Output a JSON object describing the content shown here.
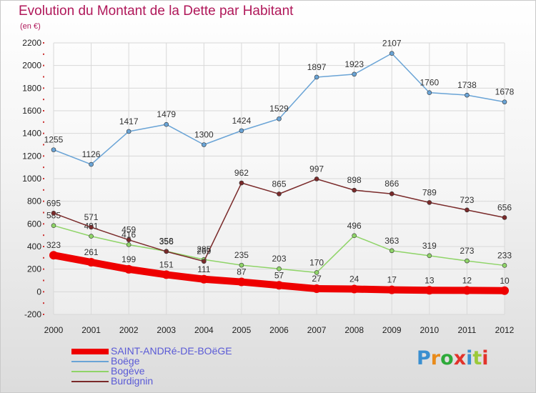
{
  "title": "Evolution du Montant de la Dette par Habitant",
  "subtitle": "(en €)",
  "logo": {
    "text": "Proxiti",
    "colors": [
      "#3a8fd0",
      "#e98b1b",
      "#2eaa3a",
      "#e2332b",
      "#3a8fd0",
      "#9bc93a",
      "#e2332b"
    ]
  },
  "chart_data": {
    "type": "line",
    "title": "Evolution du Montant de la Dette par Habitant",
    "subtitle": "(en €)",
    "categories": [
      "2000",
      "2001",
      "2002",
      "2003",
      "2004",
      "2005",
      "2006",
      "2007",
      "2008",
      "2009",
      "2010",
      "2011",
      "2012"
    ],
    "ylim": [
      -200,
      2200
    ],
    "yticks": [
      -200,
      0,
      200,
      400,
      600,
      800,
      1000,
      1200,
      1400,
      1600,
      1800,
      2000,
      2200
    ],
    "grid": true,
    "legend_position": "bottom-left",
    "series": [
      {
        "name": "SAINT-ANDRé-DE-BOëGE",
        "color": "#ee0000",
        "thick": true,
        "values": [
          323,
          261,
          199,
          151,
          111,
          87,
          57,
          27,
          24,
          17,
          13,
          12,
          10
        ]
      },
      {
        "name": "Boëge",
        "color": "#6aa4d6",
        "thick": false,
        "values": [
          1255,
          1126,
          1417,
          1479,
          1300,
          1424,
          1529,
          1897,
          1923,
          2107,
          1760,
          1738,
          1678
        ]
      },
      {
        "name": "Bogève",
        "color": "#8fd468",
        "thick": false,
        "values": [
          585,
          491,
          416,
          358,
          285,
          235,
          203,
          170,
          496,
          363,
          319,
          273,
          233
        ]
      },
      {
        "name": "Burdignin",
        "color": "#7a2a2a",
        "thick": false,
        "values": [
          695,
          571,
          459,
          356,
          269,
          962,
          865,
          997,
          898,
          866,
          789,
          723,
          656
        ]
      }
    ]
  }
}
